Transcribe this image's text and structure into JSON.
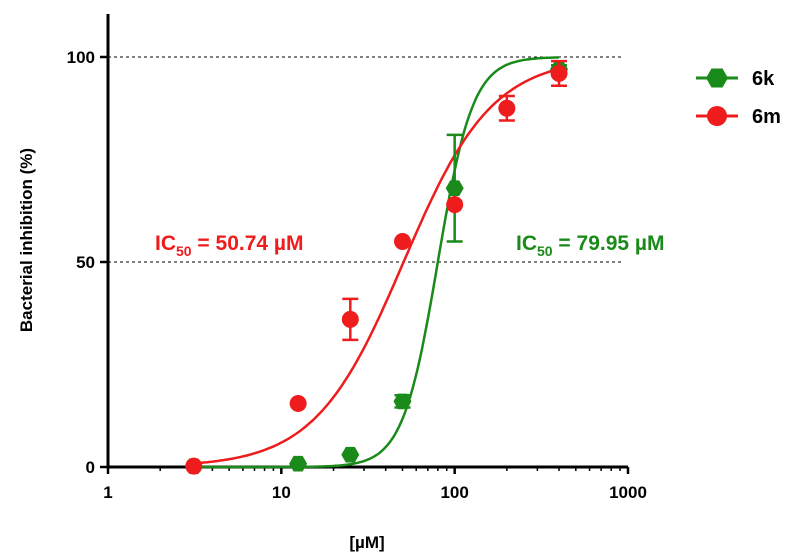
{
  "chart_data": {
    "type": "scatter",
    "x_scale": "log",
    "xlabel": "[µM]",
    "ylabel": "Bacterial inhibition (%)",
    "xlim": [
      1,
      1000
    ],
    "ylim": [
      0,
      100
    ],
    "x_ticks": [
      "1",
      "10",
      "100",
      "1000"
    ],
    "y_ticks": [
      "0",
      "50",
      "100"
    ],
    "reference_lines_y": [
      50,
      100
    ],
    "legend_position": "top-right",
    "series": [
      {
        "name": "6k",
        "color": "#1a8a1a",
        "marker": "hexagon",
        "x": [
          3.125,
          12.5,
          25,
          50,
          100,
          400
        ],
        "y": [
          0.2,
          0.8,
          3,
          16,
          68,
          97
        ],
        "err": [
          0,
          0,
          0,
          1.5,
          13,
          1
        ],
        "fit": {
          "bottom": 0,
          "top": 100,
          "ic50": 79.95,
          "hill": 4.3
        }
      },
      {
        "name": "6m",
        "color": "#ee1c1c",
        "marker": "circle",
        "x": [
          3.125,
          12.5,
          25,
          50,
          100,
          200,
          400
        ],
        "y": [
          0.2,
          15.5,
          36,
          55,
          64,
          87.5,
          96
        ],
        "err": [
          0,
          0,
          5,
          0,
          0,
          3,
          3
        ],
        "fit": {
          "bottom": 0,
          "top": 100,
          "ic50": 50.74,
          "hill": 1.7
        }
      }
    ],
    "annotations": [
      {
        "series": "6m",
        "text_prefix": "IC",
        "subscript": "50",
        "text_suffix": " = 50.74 µM"
      },
      {
        "series": "6k",
        "text_prefix": "IC",
        "subscript": "50",
        "text_suffix": " = 79.95 µM"
      }
    ]
  }
}
